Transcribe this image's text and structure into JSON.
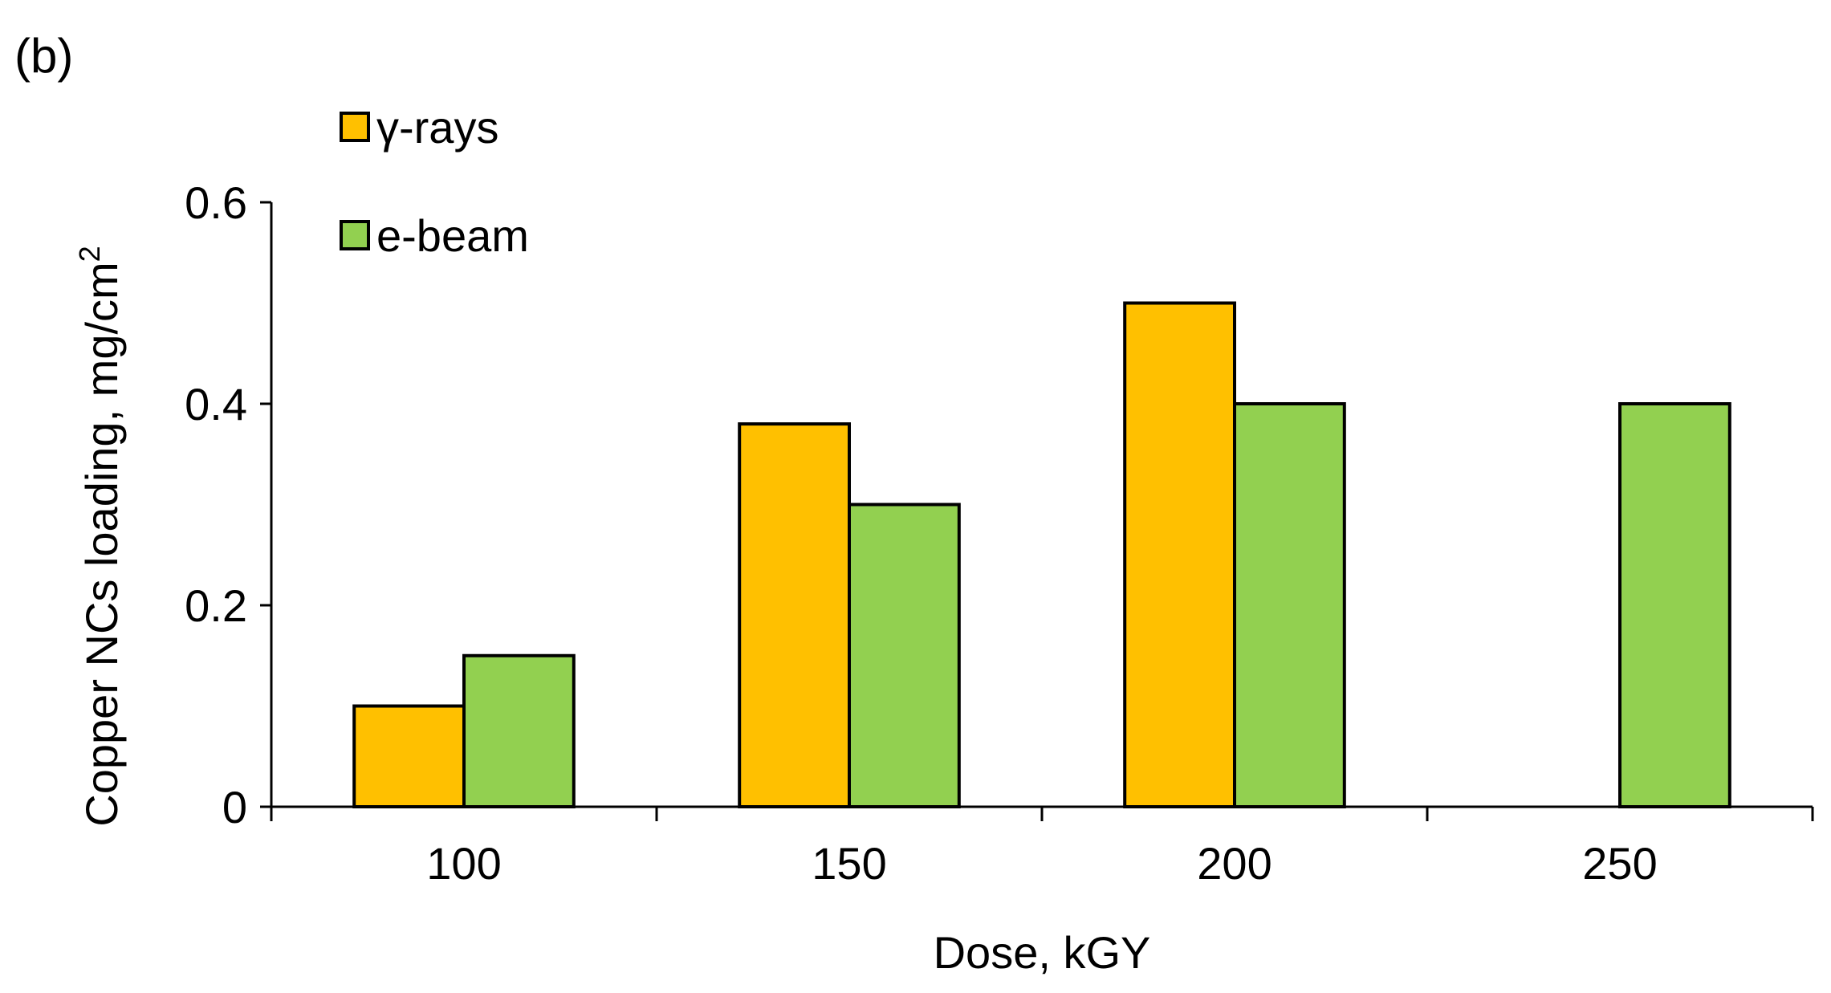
{
  "panel_label": "(b)",
  "colors": {
    "gamma": "#FFC000",
    "ebeam": "#92D050",
    "outline": "#000000",
    "background": "#FFFFFF"
  },
  "chart_data": {
    "type": "bar",
    "title": "",
    "xlabel": "Dose, kGY",
    "ylabel": "Copper NCs loading, mg/cm",
    "ylabel_superscript": "2",
    "categories": [
      "100",
      "150",
      "200",
      "250"
    ],
    "series": [
      {
        "name": "γ-rays",
        "color": "#FFC000",
        "values": [
          0.1,
          0.38,
          0.5,
          null
        ]
      },
      {
        "name": "e-beam",
        "color": "#92D050",
        "values": [
          0.15,
          0.3,
          0.4,
          0.4
        ]
      }
    ],
    "ylim": [
      0,
      0.6
    ],
    "yticks": [
      0,
      0.2,
      0.4,
      0.6
    ],
    "ytick_labels": [
      "0",
      "0.2",
      "0.4",
      "0.6"
    ],
    "grid": false,
    "legend_position": "top-left"
  }
}
